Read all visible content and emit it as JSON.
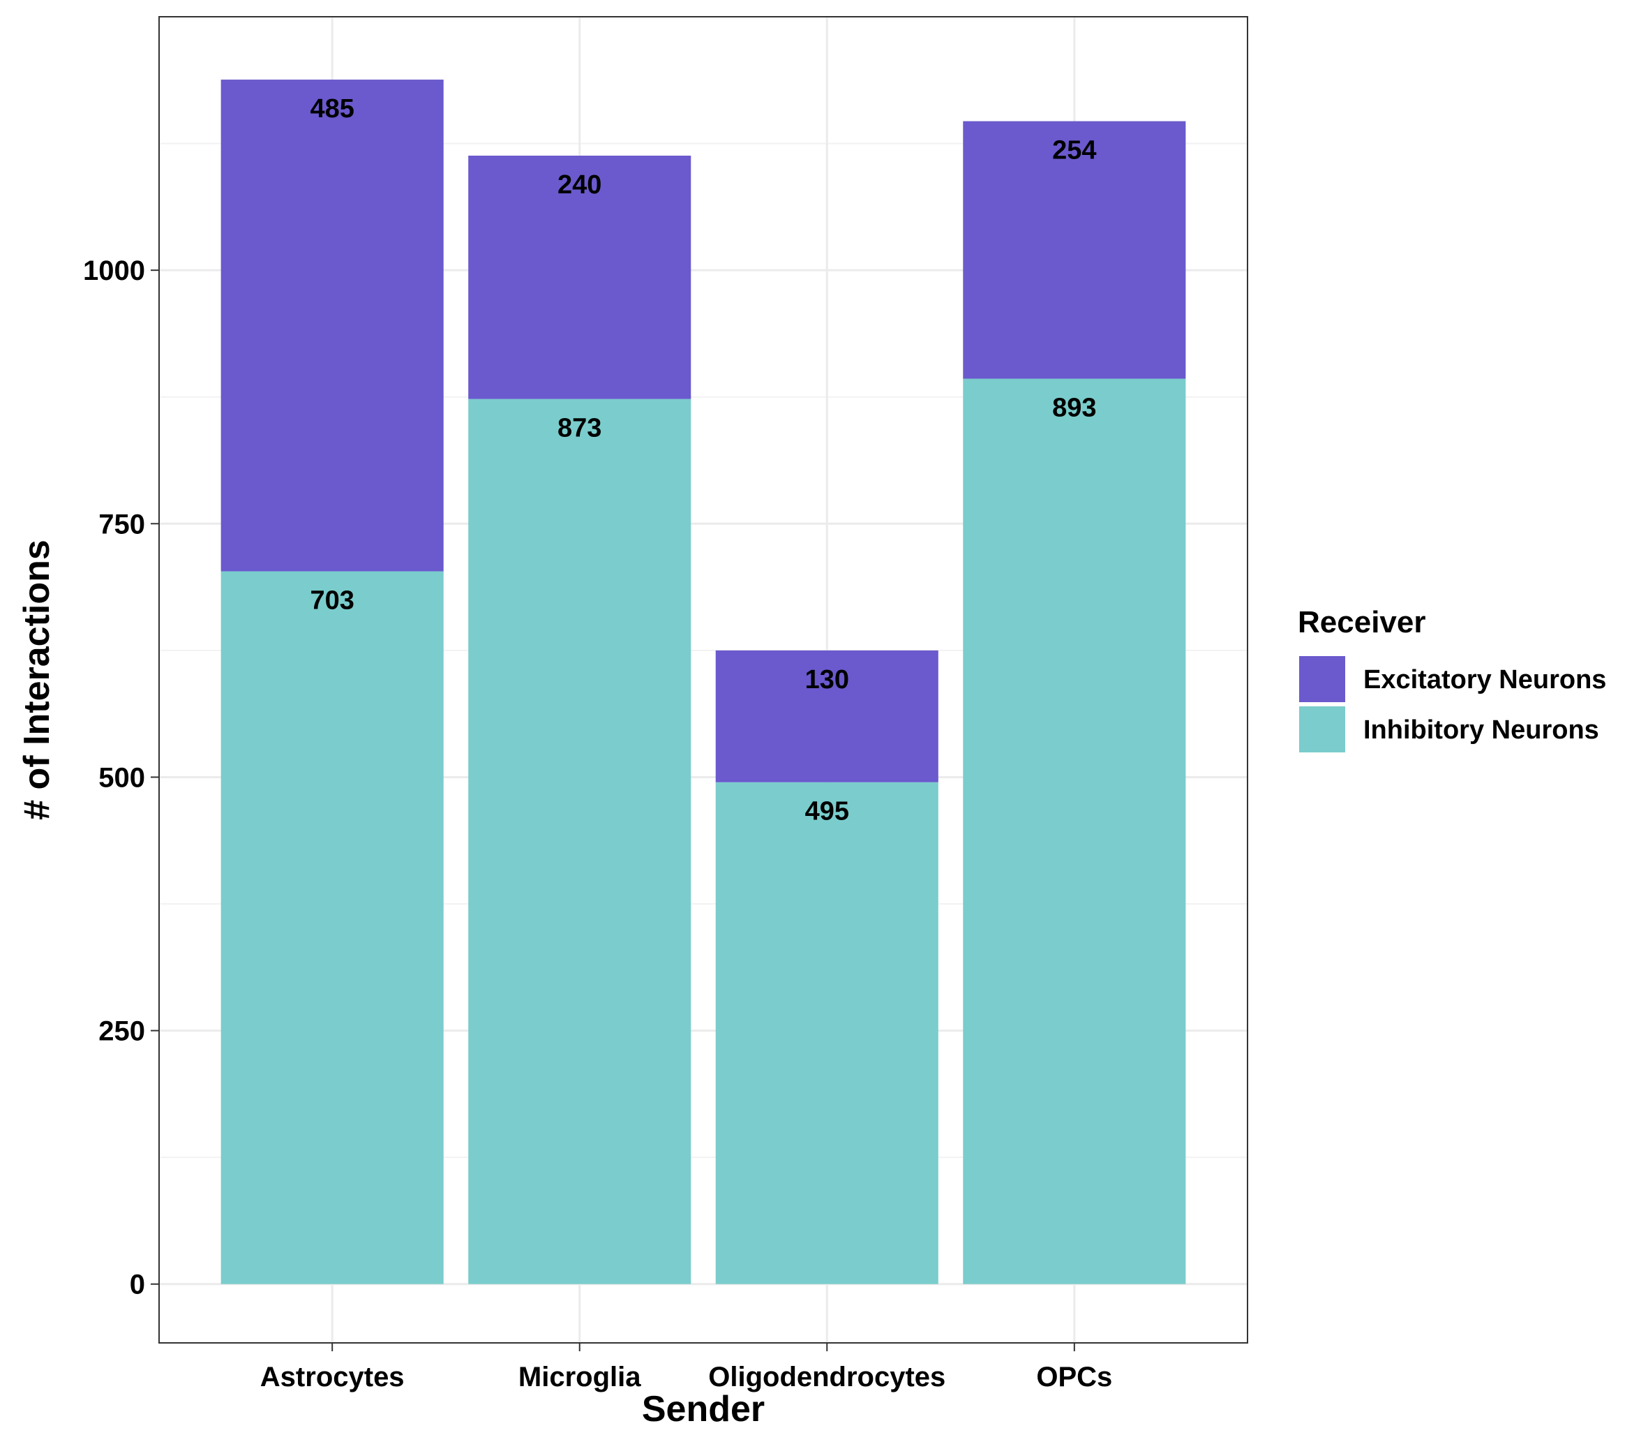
{
  "chart_data": {
    "type": "bar",
    "stacked": true,
    "categories": [
      "Astrocytes",
      "Microglia",
      "Oligodendrocytes",
      "OPCs"
    ],
    "series": [
      {
        "name": "Inhibitory Neurons",
        "values": [
          703,
          873,
          495,
          893
        ],
        "color": "#7ACDCC"
      },
      {
        "name": "Excitatory Neurons",
        "values": [
          485,
          240,
          130,
          254
        ],
        "color": "#6A5ACD"
      }
    ],
    "xlabel": "Sender",
    "ylabel": "# of Interactions",
    "ylim": [
      -58,
      1250
    ],
    "yticks": [
      0,
      250,
      500,
      750,
      1000
    ],
    "grid": true,
    "legend": {
      "title": "Receiver",
      "placement": "right",
      "entries": [
        "Excitatory Neurons",
        "Inhibitory Neurons"
      ]
    }
  }
}
